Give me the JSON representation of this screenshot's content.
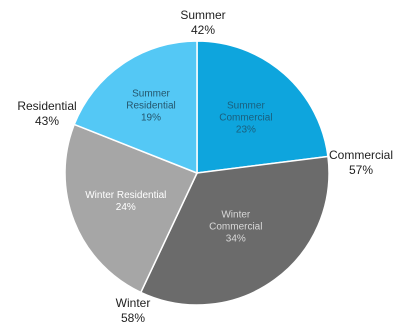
{
  "chart_data": {
    "type": "pie",
    "slices": [
      {
        "name": "Summer Commercial",
        "label_lines": [
          "Summer",
          "Commercial"
        ],
        "value_label": "23%",
        "value": 23,
        "color": "#0ea5dd",
        "label_color": "#1a5f7d"
      },
      {
        "name": "Winter Commercial",
        "label_lines": [
          "Winter",
          "Commercial"
        ],
        "value_label": "34%",
        "value": 34,
        "color": "#6b6b6b",
        "label_color": "#d8d8d8"
      },
      {
        "name": "Winter Residential",
        "label_lines": [
          "Winter Residential"
        ],
        "value_label": "24%",
        "value": 24,
        "color": "#a6a6a6",
        "label_color": "#ffffff"
      },
      {
        "name": "Summer Residential",
        "label_lines": [
          "Summer",
          "Residential"
        ],
        "value_label": "19%",
        "value": 19,
        "color": "#54c8f5",
        "label_color": "#25566d"
      }
    ],
    "outer_labels": [
      {
        "name": "Summer",
        "text": "Summer",
        "value_label": "42%"
      },
      {
        "name": "Commercial",
        "text": "Commercial",
        "value_label": "57%"
      },
      {
        "name": "Winter",
        "text": "Winter",
        "value_label": "58%"
      },
      {
        "name": "Residential",
        "text": "Residential",
        "value_label": "43%"
      }
    ]
  }
}
